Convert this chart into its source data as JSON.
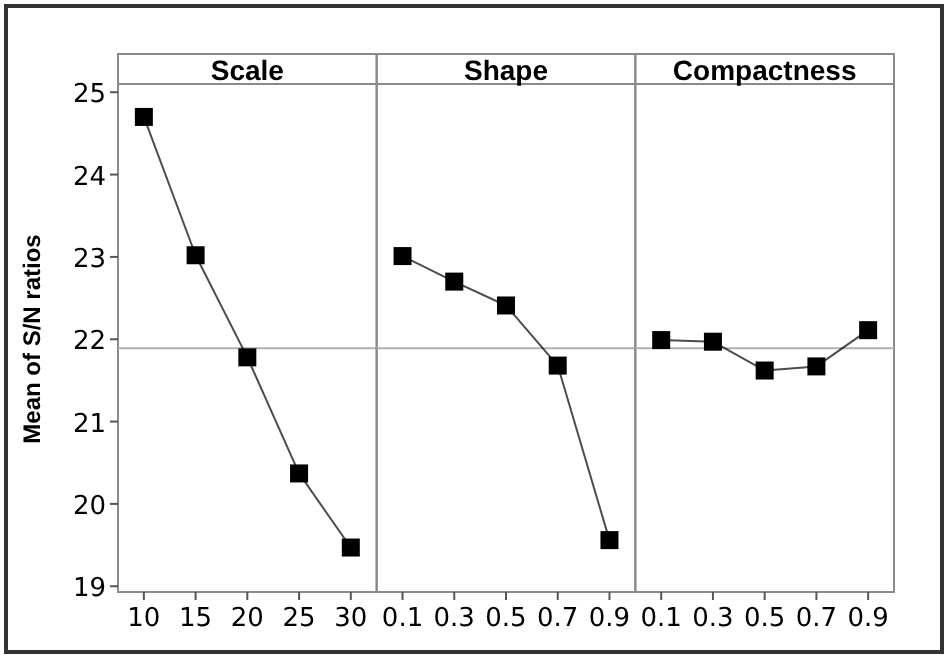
{
  "chart_data": [
    {
      "type": "line",
      "title": "Scale",
      "ylabel": "Mean of S/N ratios",
      "categories": [
        "10",
        "15",
        "20",
        "25",
        "30"
      ],
      "marker": "square",
      "ylim": [
        18.93,
        25.1
      ],
      "yticks": [
        19,
        20,
        21,
        22,
        23,
        24,
        25
      ],
      "ref_lines": [
        {
          "axis": "y",
          "value": 21.89,
          "color": "#b0b0b0"
        }
      ],
      "series": [
        {
          "color": "#000000",
          "values": [
            24.7,
            23.02,
            21.78,
            20.37,
            19.47
          ]
        }
      ]
    },
    {
      "type": "line",
      "title": "Shape",
      "categories": [
        "0.1",
        "0.3",
        "0.5",
        "0.7",
        "0.9"
      ],
      "marker": "square",
      "ylim": [
        18.93,
        25.1
      ],
      "tick_labels": "x",
      "ref_lines": [
        {
          "axis": "y",
          "value": 21.89,
          "color": "#b0b0b0"
        }
      ],
      "series": [
        {
          "color": "#000000",
          "values": [
            23.01,
            22.7,
            22.41,
            21.68,
            19.56
          ]
        }
      ]
    },
    {
      "type": "line",
      "title": "Compactness",
      "categories": [
        "0.1",
        "0.3",
        "0.5",
        "0.7",
        "0.9"
      ],
      "marker": "square",
      "ylim": [
        18.93,
        25.1
      ],
      "tick_labels": "x",
      "ref_lines": [
        {
          "axis": "y",
          "value": 21.89,
          "color": "#b0b0b0"
        }
      ],
      "series": [
        {
          "color": "#000000",
          "values": [
            21.99,
            21.97,
            21.62,
            21.67,
            22.11
          ]
        }
      ]
    }
  ]
}
